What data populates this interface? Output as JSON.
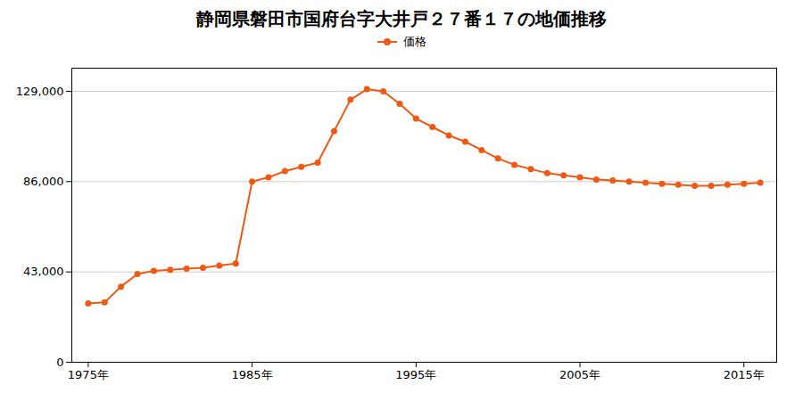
{
  "chart_data": {
    "type": "line",
    "title": "静岡県磐田市国府台字大井戸２７番１７の地価推移",
    "x": [
      1975,
      1976,
      1977,
      1978,
      1979,
      1980,
      1981,
      1982,
      1983,
      1984,
      1985,
      1986,
      1987,
      1988,
      1989,
      1990,
      1991,
      1992,
      1993,
      1994,
      1995,
      1996,
      1997,
      1998,
      1999,
      2000,
      2001,
      2002,
      2003,
      2004,
      2005,
      2006,
      2007,
      2008,
      2009,
      2010,
      2011,
      2012,
      2013,
      2014,
      2015,
      2016
    ],
    "series": [
      {
        "name": "価格",
        "color": "#f05914",
        "marker": "circle",
        "values": [
          28000,
          28500,
          36000,
          42000,
          43500,
          44000,
          44500,
          45000,
          46000,
          47000,
          86000,
          88000,
          91000,
          93000,
          95000,
          110000,
          125000,
          130000,
          129000,
          123000,
          116000,
          112000,
          108000,
          105000,
          101000,
          97000,
          94000,
          92000,
          90000,
          89000,
          88000,
          87000,
          86500,
          86000,
          85500,
          85000,
          84500,
          84000,
          84000,
          84500,
          85000,
          85500
        ]
      }
    ],
    "xlim": [
      1974,
      2017
    ],
    "xticks": [
      {
        "value": 1975,
        "label": "1975年"
      },
      {
        "value": 1985,
        "label": "1985年"
      },
      {
        "value": 1995,
        "label": "1995年"
      },
      {
        "value": 2005,
        "label": "2005年"
      },
      {
        "value": 2015,
        "label": "2015年"
      }
    ],
    "ylim": [
      0,
      140000
    ],
    "yticks": [
      0,
      {
        "value": 43000,
        "label": "43,000"
      },
      {
        "value": 86000,
        "label": "86,000"
      },
      {
        "value": 129000,
        "label": "129,000"
      }
    ],
    "grid": "y",
    "legend": "top"
  }
}
